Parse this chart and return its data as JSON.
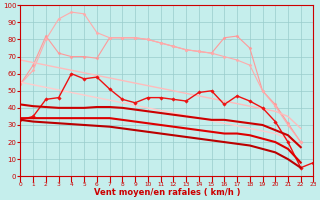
{
  "title": "",
  "xlabel": "Vent moyen/en rafales ( km/h )",
  "xlim": [
    0,
    23
  ],
  "ylim": [
    0,
    100
  ],
  "background_color": "#c5eeec",
  "grid_color": "#99cccc",
  "x": [
    0,
    1,
    2,
    3,
    4,
    5,
    6,
    7,
    8,
    9,
    10,
    11,
    12,
    13,
    14,
    15,
    16,
    17,
    18,
    19,
    20,
    21,
    22,
    23
  ],
  "series": [
    {
      "name": "line_pink1",
      "color": "#ff9999",
      "lw": 0.8,
      "marker": "D",
      "markersize": 1.5,
      "y": [
        54,
        65,
        82,
        72,
        70,
        70,
        69,
        81,
        81,
        81,
        80,
        78,
        76,
        74,
        73,
        72,
        81,
        82,
        75,
        50,
        42,
        31,
        20,
        null
      ]
    },
    {
      "name": "line_pink2",
      "color": "#ffaaaa",
      "lw": 0.8,
      "marker": "D",
      "markersize": 1.5,
      "y": [
        54,
        62,
        80,
        92,
        96,
        95,
        84,
        81,
        81,
        81,
        80,
        78,
        76,
        74,
        73,
        72,
        70,
        68,
        65,
        50,
        41,
        30,
        20,
        null
      ]
    },
    {
      "name": "line_pink_diag1",
      "color": "#ffbbbb",
      "lw": 1.0,
      "marker": null,
      "y": [
        68,
        66.5,
        65,
        63.5,
        62,
        60.5,
        59,
        57.5,
        56,
        54.5,
        53,
        51.5,
        50,
        48.5,
        47,
        45.5,
        44,
        42.5,
        41,
        39.5,
        38,
        35,
        28,
        null
      ]
    },
    {
      "name": "line_pink_diag2",
      "color": "#ffcccc",
      "lw": 1.0,
      "marker": null,
      "y": [
        55,
        53.5,
        52,
        50.5,
        49,
        47.5,
        46,
        44.5,
        43,
        41.5,
        40,
        38.5,
        37,
        35.5,
        34,
        32.5,
        31,
        29.5,
        28,
        26.5,
        25,
        22,
        18,
        null
      ]
    },
    {
      "name": "line_red_marker",
      "color": "#ee1111",
      "lw": 1.0,
      "marker": "D",
      "markersize": 1.8,
      "y": [
        33,
        35,
        45,
        46,
        60,
        57,
        58,
        51,
        45,
        43,
        46,
        46,
        45,
        44,
        49,
        50,
        42,
        47,
        44,
        40,
        32,
        20,
        5,
        8
      ]
    },
    {
      "name": "line_red_diag1",
      "color": "#cc0000",
      "lw": 1.5,
      "marker": null,
      "y": [
        42,
        41,
        40.5,
        40,
        40,
        40,
        40.5,
        40.5,
        40,
        39,
        38,
        37,
        36,
        35,
        34,
        33,
        33,
        32,
        31,
        30,
        27,
        24,
        17,
        null
      ]
    },
    {
      "name": "line_red_diag2",
      "color": "#dd0000",
      "lw": 1.5,
      "marker": null,
      "y": [
        34,
        34,
        34,
        34,
        34,
        34,
        34,
        34,
        33,
        32,
        31,
        30,
        29,
        28,
        27,
        26,
        25,
        25,
        24,
        22,
        20,
        16,
        8,
        null
      ]
    },
    {
      "name": "line_red_diag3",
      "color": "#bb0000",
      "lw": 1.5,
      "marker": null,
      "y": [
        33,
        32,
        31.5,
        31,
        30.5,
        30,
        29.5,
        29,
        28,
        27,
        26,
        25,
        24,
        23,
        22,
        21,
        20,
        19,
        18,
        16,
        14,
        10,
        5,
        null
      ]
    }
  ],
  "xtick_labels": [
    "0",
    "1",
    "2",
    "3",
    "4",
    "5",
    "6",
    "7",
    "8",
    "9",
    "10",
    "11",
    "12",
    "13",
    "14",
    "15",
    "16",
    "17",
    "18",
    "19",
    "20",
    "21",
    "2223"
  ],
  "ytick_values": [
    0,
    10,
    20,
    30,
    40,
    50,
    60,
    70,
    80,
    90,
    100
  ],
  "xlabel_fontsize": 6.0,
  "xtick_fontsize": 4.2,
  "ytick_fontsize": 5.0
}
